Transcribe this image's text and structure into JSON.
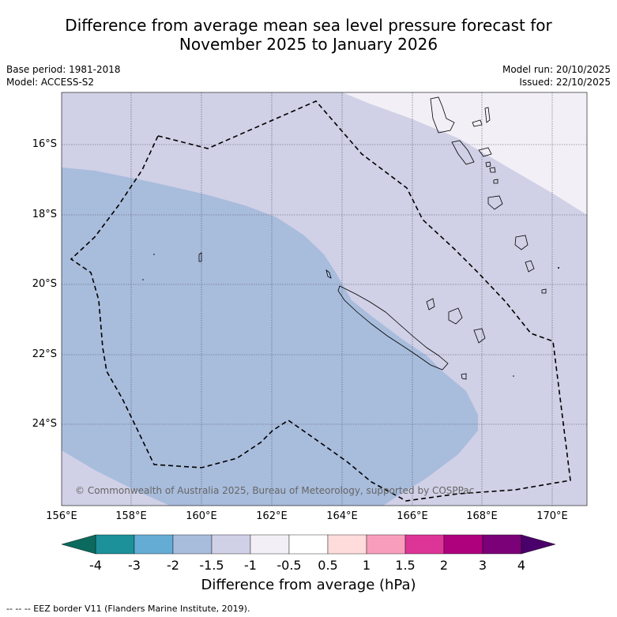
{
  "title": {
    "line1": "Difference from average mean sea level pressure forecast for",
    "line2": "November 2025 to January 2026"
  },
  "meta": {
    "base_period": "Base period: 1981-2018",
    "model": "Model: ACCESS-S2",
    "model_run": "Model run: 20/10/2025",
    "issued": "Issued: 22/10/2025"
  },
  "map": {
    "lon_labels": [
      "156°E",
      "158°E",
      "160°E",
      "162°E",
      "164°E",
      "166°E",
      "168°E",
      "170°E"
    ],
    "lat_labels": [
      "16°S",
      "18°S",
      "20°S",
      "22°S",
      "24°S"
    ],
    "copyright": "© Commonwealth of Australia 2025, Bureau of Meteorology, supported by COSPPac"
  },
  "colorbar": {
    "ticks": [
      "-4",
      "-3",
      "-2",
      "-1.5",
      "-1",
      "-0.5",
      "0.5",
      "1",
      "1.5",
      "2",
      "3",
      "4"
    ],
    "colors": [
      "#0b6a5d",
      "#1c9199",
      "#64acd4",
      "#a8bcdc",
      "#d0d0e6",
      "#f2eff6",
      "#ffffff",
      "#fedcdc",
      "#f89ebc",
      "#dd3497",
      "#ae017e",
      "#7a0177",
      "#49006a"
    ],
    "title": "Difference from average (hPa)"
  },
  "footnote": "-- -- -- EEZ border V11 (Flanders Marine Institute, 2019)."
}
